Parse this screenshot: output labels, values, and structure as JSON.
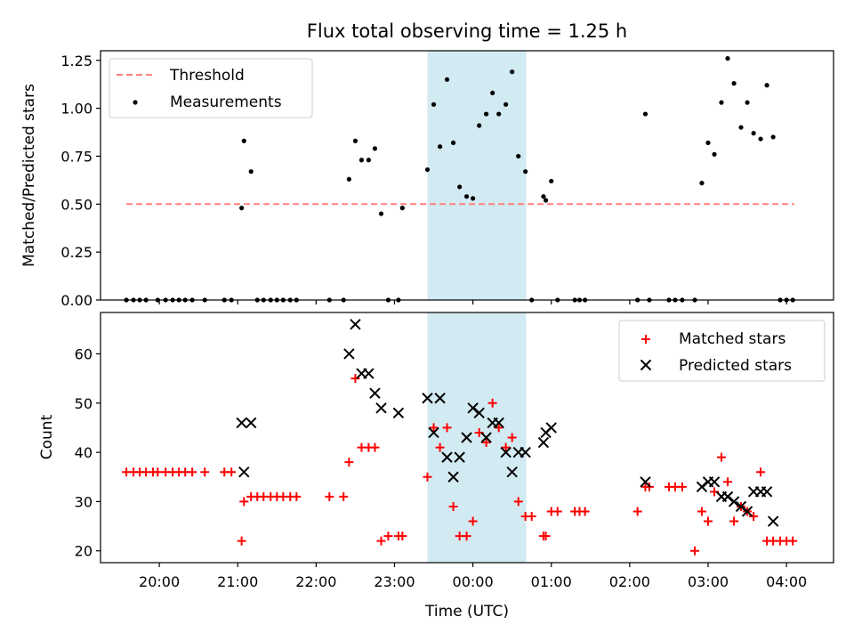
{
  "figure": {
    "title": "Flux total observing time = 1.25 h"
  },
  "chart_data": [
    {
      "type": "scatter",
      "panel": "top",
      "title": "Flux total observing time = 1.25 h",
      "xlabel": "",
      "ylabel": "Matched/Predicted stars",
      "x_unit": "hours (axis ticks shown as UTC clock time)",
      "xlim": [
        -4.75,
        4.6
      ],
      "ylim": [
        0,
        1.3
      ],
      "y_ticks": [
        0,
        0.25,
        0.5,
        0.75,
        1.0,
        1.25
      ],
      "y_tick_labels": [
        "0.00",
        "0.25",
        "0.50",
        "0.75",
        "1.00",
        "1.25"
      ],
      "grid": false,
      "legend_position": "upper-left",
      "shaded_region": {
        "x": [
          -0.58,
          0.68
        ],
        "color": "#add8e6"
      },
      "series": [
        {
          "name": "Threshold",
          "kind": "line",
          "style": "dashed",
          "color": "#ff8080",
          "x": [
            -4.42,
            4.1
          ],
          "y": [
            0.5,
            0.5
          ]
        },
        {
          "name": "Measurements",
          "kind": "points",
          "color": "#000000",
          "x": [
            -4.42,
            -4.33,
            -4.25,
            -4.17,
            -4.02,
            -3.92,
            -3.83,
            -3.75,
            -3.67,
            -3.58,
            -3.42,
            -3.17,
            -3.08,
            -2.95,
            -2.92,
            -2.83,
            -2.75,
            -2.67,
            -2.58,
            -2.5,
            -2.42,
            -2.33,
            -2.25,
            -1.83,
            -1.65,
            -1.58,
            -1.5,
            -1.42,
            -1.33,
            -1.25,
            -1.17,
            -1.08,
            -0.95,
            -0.9,
            -0.58,
            -0.5,
            -0.42,
            -0.33,
            -0.25,
            -0.17,
            -0.08,
            0.0,
            0.08,
            0.17,
            0.25,
            0.33,
            0.42,
            0.5,
            0.58,
            0.67,
            0.75,
            0.9,
            0.93,
            1.0,
            1.08,
            1.3,
            1.36,
            1.43,
            2.1,
            2.2,
            2.25,
            2.5,
            2.58,
            2.67,
            2.83,
            2.92,
            3.0,
            3.08,
            3.17,
            3.25,
            3.33,
            3.42,
            3.5,
            3.58,
            3.67,
            3.75,
            3.83,
            3.92,
            4.0,
            4.08
          ],
          "y": [
            0,
            0,
            0,
            0,
            0,
            0,
            0,
            0,
            0,
            0,
            0,
            0,
            0,
            0.48,
            0.83,
            0.67,
            0,
            0,
            0,
            0,
            0,
            0,
            0,
            0,
            0,
            0.63,
            0.83,
            0.73,
            0.73,
            0.79,
            0.45,
            0,
            0,
            0.48,
            0.68,
            1.02,
            0.8,
            1.15,
            0.82,
            0.59,
            0.54,
            0.53,
            0.91,
            0.97,
            1.08,
            0.97,
            1.02,
            1.19,
            0.75,
            0.67,
            0,
            0.54,
            0.52,
            0.62,
            0,
            0,
            0,
            0,
            0,
            0.97,
            0,
            0,
            0,
            0,
            0,
            0.61,
            0.82,
            0.76,
            1.03,
            1.26,
            1.13,
            0.9,
            1.03,
            0.87,
            0.84,
            1.12,
            0.85,
            0,
            0,
            0
          ]
        }
      ]
    },
    {
      "type": "scatter",
      "panel": "bottom",
      "xlabel": "Time (UTC)",
      "ylabel": "Count",
      "x_unit": "hours (axis ticks shown as UTC clock time)",
      "xlim": [
        -4.75,
        4.6
      ],
      "ylim": [
        17.6,
        68.4
      ],
      "x_ticks": [
        -4,
        -3,
        -2,
        -1,
        0,
        1,
        2,
        3,
        4
      ],
      "x_tick_labels": [
        "20:00",
        "21:00",
        "22:00",
        "23:00",
        "00:00",
        "01:00",
        "02:00",
        "03:00",
        "04:00"
      ],
      "y_ticks": [
        20,
        30,
        40,
        50,
        60
      ],
      "y_tick_labels": [
        "20",
        "30",
        "40",
        "50",
        "60"
      ],
      "grid": false,
      "legend_position": "upper-right",
      "shaded_region": {
        "x": [
          -0.58,
          0.68
        ],
        "color": "#add8e6"
      },
      "series": [
        {
          "name": "Matched stars",
          "marker": "plus",
          "color": "#ff0000",
          "x": [
            -4.42,
            -4.33,
            -4.25,
            -4.17,
            -4.08,
            -4.02,
            -3.92,
            -3.83,
            -3.75,
            -3.67,
            -3.58,
            -3.42,
            -3.17,
            -3.08,
            -2.95,
            -2.92,
            -2.83,
            -2.75,
            -2.67,
            -2.58,
            -2.5,
            -2.42,
            -2.33,
            -2.25,
            -1.83,
            -1.65,
            -1.58,
            -1.5,
            -1.42,
            -1.33,
            -1.25,
            -1.17,
            -1.08,
            -0.95,
            -0.9,
            -0.58,
            -0.5,
            -0.42,
            -0.33,
            -0.25,
            -0.17,
            -0.08,
            0.0,
            0.08,
            0.17,
            0.25,
            0.33,
            0.42,
            0.5,
            0.58,
            0.67,
            0.75,
            0.9,
            0.93,
            1.0,
            1.08,
            1.3,
            1.36,
            1.43,
            2.1,
            2.2,
            2.25,
            2.5,
            2.58,
            2.67,
            2.83,
            2.92,
            3.0,
            3.08,
            3.17,
            3.25,
            3.33,
            3.42,
            3.5,
            3.58,
            3.67,
            3.75,
            3.83,
            3.92,
            4.0,
            4.08
          ],
          "y": [
            36,
            36,
            36,
            36,
            36,
            36,
            36,
            36,
            36,
            36,
            36,
            36,
            36,
            36,
            22,
            30,
            31,
            31,
            31,
            31,
            31,
            31,
            31,
            31,
            31,
            31,
            38,
            55,
            41,
            41,
            41,
            22,
            23,
            23,
            23,
            35,
            45,
            41,
            45,
            29,
            23,
            23,
            26,
            44,
            42,
            50,
            45,
            41,
            43,
            30,
            27,
            27,
            23,
            23,
            28,
            28,
            28,
            28,
            28,
            28,
            33,
            33,
            33,
            33,
            33,
            20,
            28,
            26,
            32,
            39,
            34,
            26,
            29,
            28,
            27,
            36,
            22,
            22,
            22,
            22,
            22
          ]
        },
        {
          "name": "Predicted stars",
          "marker": "cross",
          "color": "#000000",
          "x": [
            -2.95,
            -2.92,
            -2.83,
            -1.58,
            -1.5,
            -1.42,
            -1.33,
            -1.25,
            -1.17,
            -0.95,
            -0.58,
            -0.5,
            -0.42,
            -0.33,
            -0.25,
            -0.17,
            -0.08,
            0.0,
            0.08,
            0.17,
            0.25,
            0.33,
            0.42,
            0.5,
            0.58,
            0.67,
            0.9,
            0.93,
            1.0,
            2.2,
            2.92,
            3.0,
            3.08,
            3.17,
            3.25,
            3.33,
            3.42,
            3.5,
            3.58,
            3.67,
            3.75,
            3.83
          ],
          "y": [
            46,
            36,
            46,
            60,
            66,
            56,
            56,
            52,
            49,
            48,
            51,
            44,
            51,
            39,
            35,
            39,
            43,
            49,
            48,
            43,
            46,
            46,
            40,
            36,
            40,
            40,
            42,
            44,
            45,
            34,
            33,
            34,
            34,
            31,
            31,
            30,
            29,
            28,
            32,
            32,
            32,
            26
          ]
        }
      ]
    }
  ]
}
